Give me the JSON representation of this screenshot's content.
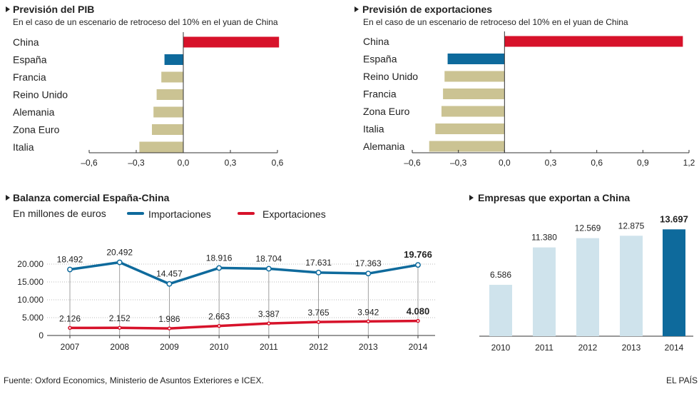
{
  "source": "Fuente: Oxford Economics, Ministerio de Asuntos Exteriores e ICEX.",
  "brand": "EL PAÍS",
  "colors": {
    "red": "#d7122a",
    "blue": "#0e6a9c",
    "khaki": "#cbc393",
    "lightblue": "#cfe3ec"
  },
  "chart_data": [
    {
      "type": "bar",
      "orientation": "horizontal",
      "title": "Previsión del PIB",
      "subtitle": "En el caso de un escenario de retroceso del 10% en el yuan de China",
      "categories": [
        "China",
        "España",
        "Francia",
        "Reino Unido",
        "Alemania",
        "Zona Euro",
        "Italia"
      ],
      "values": [
        0.61,
        -0.12,
        -0.14,
        -0.17,
        -0.19,
        -0.2,
        -0.28
      ],
      "xlim": [
        -0.6,
        0.6
      ],
      "ticks": [
        -0.6,
        -0.3,
        0,
        0.3,
        0.6
      ],
      "tick_labels": [
        "–0,6",
        "–0,3",
        "0,0",
        "0,3",
        "0,6"
      ],
      "grid": false
    },
    {
      "type": "bar",
      "orientation": "horizontal",
      "title": "Previsión de exportaciones",
      "subtitle": "En el caso de un escenario de retroceso del 10% en el yuan de China",
      "categories": [
        "China",
        "España",
        "Reino Unido",
        "Francia",
        "Zona Euro",
        "Italia",
        "Alemania"
      ],
      "values": [
        1.16,
        -0.37,
        -0.39,
        -0.4,
        -0.41,
        -0.45,
        -0.49
      ],
      "xlim": [
        -0.6,
        1.2
      ],
      "ticks": [
        -0.6,
        -0.3,
        0,
        0.3,
        0.6,
        0.9,
        1.2
      ],
      "tick_labels": [
        "–0,6",
        "–0,3",
        "0,0",
        "0,3",
        "0,6",
        "0,9",
        "1,2"
      ],
      "grid": false
    },
    {
      "type": "line",
      "title": "Balanza comercial España-China",
      "unit_label": "En millones de euros",
      "x": [
        "2007",
        "2008",
        "2009",
        "2010",
        "2011",
        "2012",
        "2013",
        "2014"
      ],
      "series": [
        {
          "name": "Importaciones",
          "values": [
            18492,
            20492,
            14457,
            18916,
            18704,
            17631,
            17363,
            19766
          ],
          "labels": [
            "18.492",
            "20.492",
            "14.457",
            "18.916",
            "18.704",
            "17.631",
            "17.363",
            "19.766"
          ]
        },
        {
          "name": "Exportaciones",
          "values": [
            2126,
            2152,
            1986,
            2663,
            3387,
            3765,
            3942,
            4080
          ],
          "labels": [
            "2.126",
            "2.152",
            "1.986",
            "2.663",
            "3.387",
            "3.765",
            "3.942",
            "4.080"
          ]
        }
      ],
      "ylim": [
        0,
        24000
      ],
      "yticks": [
        0,
        5000,
        10000,
        15000,
        20000
      ],
      "ytick_labels": [
        "0",
        "5.000",
        "10.000",
        "15.000",
        "20.000"
      ],
      "legend": "top"
    },
    {
      "type": "bar",
      "title": "Empresas que exportan a China",
      "categories": [
        "2010",
        "2011",
        "2012",
        "2013",
        "2014"
      ],
      "values": [
        6586,
        11380,
        12569,
        12875,
        13697
      ],
      "value_labels": [
        "6.586",
        "11.380",
        "12.569",
        "12.875",
        "13.697"
      ],
      "ylim": [
        0,
        14000
      ]
    }
  ]
}
